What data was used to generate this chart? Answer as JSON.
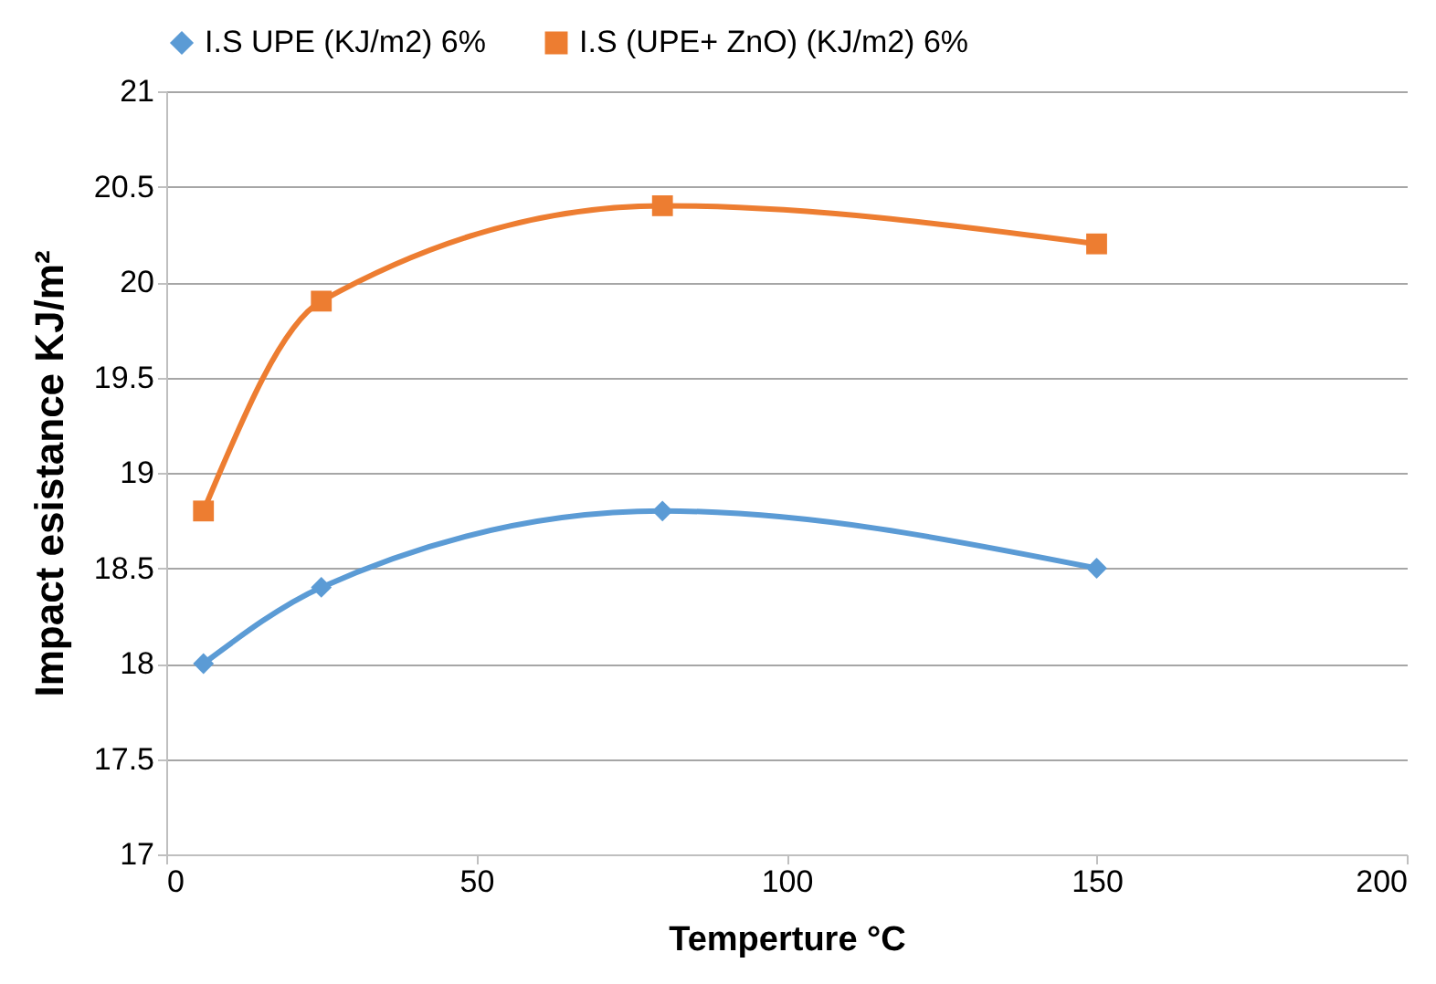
{
  "chart_data": {
    "type": "line",
    "xlabel": "Temperture °C",
    "ylabel": "Impact esistance KJ/m²",
    "x": [
      6,
      25,
      80,
      150
    ],
    "series": [
      {
        "name": "I.S UPE (KJ/m2) 6%",
        "color": "#5b9bd5",
        "marker": "diamond",
        "values": [
          18.0,
          18.4,
          18.8,
          18.5
        ]
      },
      {
        "name": "I.S (UPE+ ZnO) (KJ/m2) 6%",
        "color": "#ed7d31",
        "marker": "square",
        "values": [
          18.8,
          19.9,
          20.4,
          20.2
        ]
      }
    ],
    "xlim": [
      0,
      200
    ],
    "xticks": [
      0,
      50,
      100,
      150,
      200
    ],
    "ylim": [
      17,
      21
    ],
    "yticks": [
      17,
      17.5,
      18,
      18.5,
      19,
      19.5,
      20,
      20.5,
      21
    ],
    "grid": "y",
    "legend": "top",
    "line_style": "solid"
  }
}
